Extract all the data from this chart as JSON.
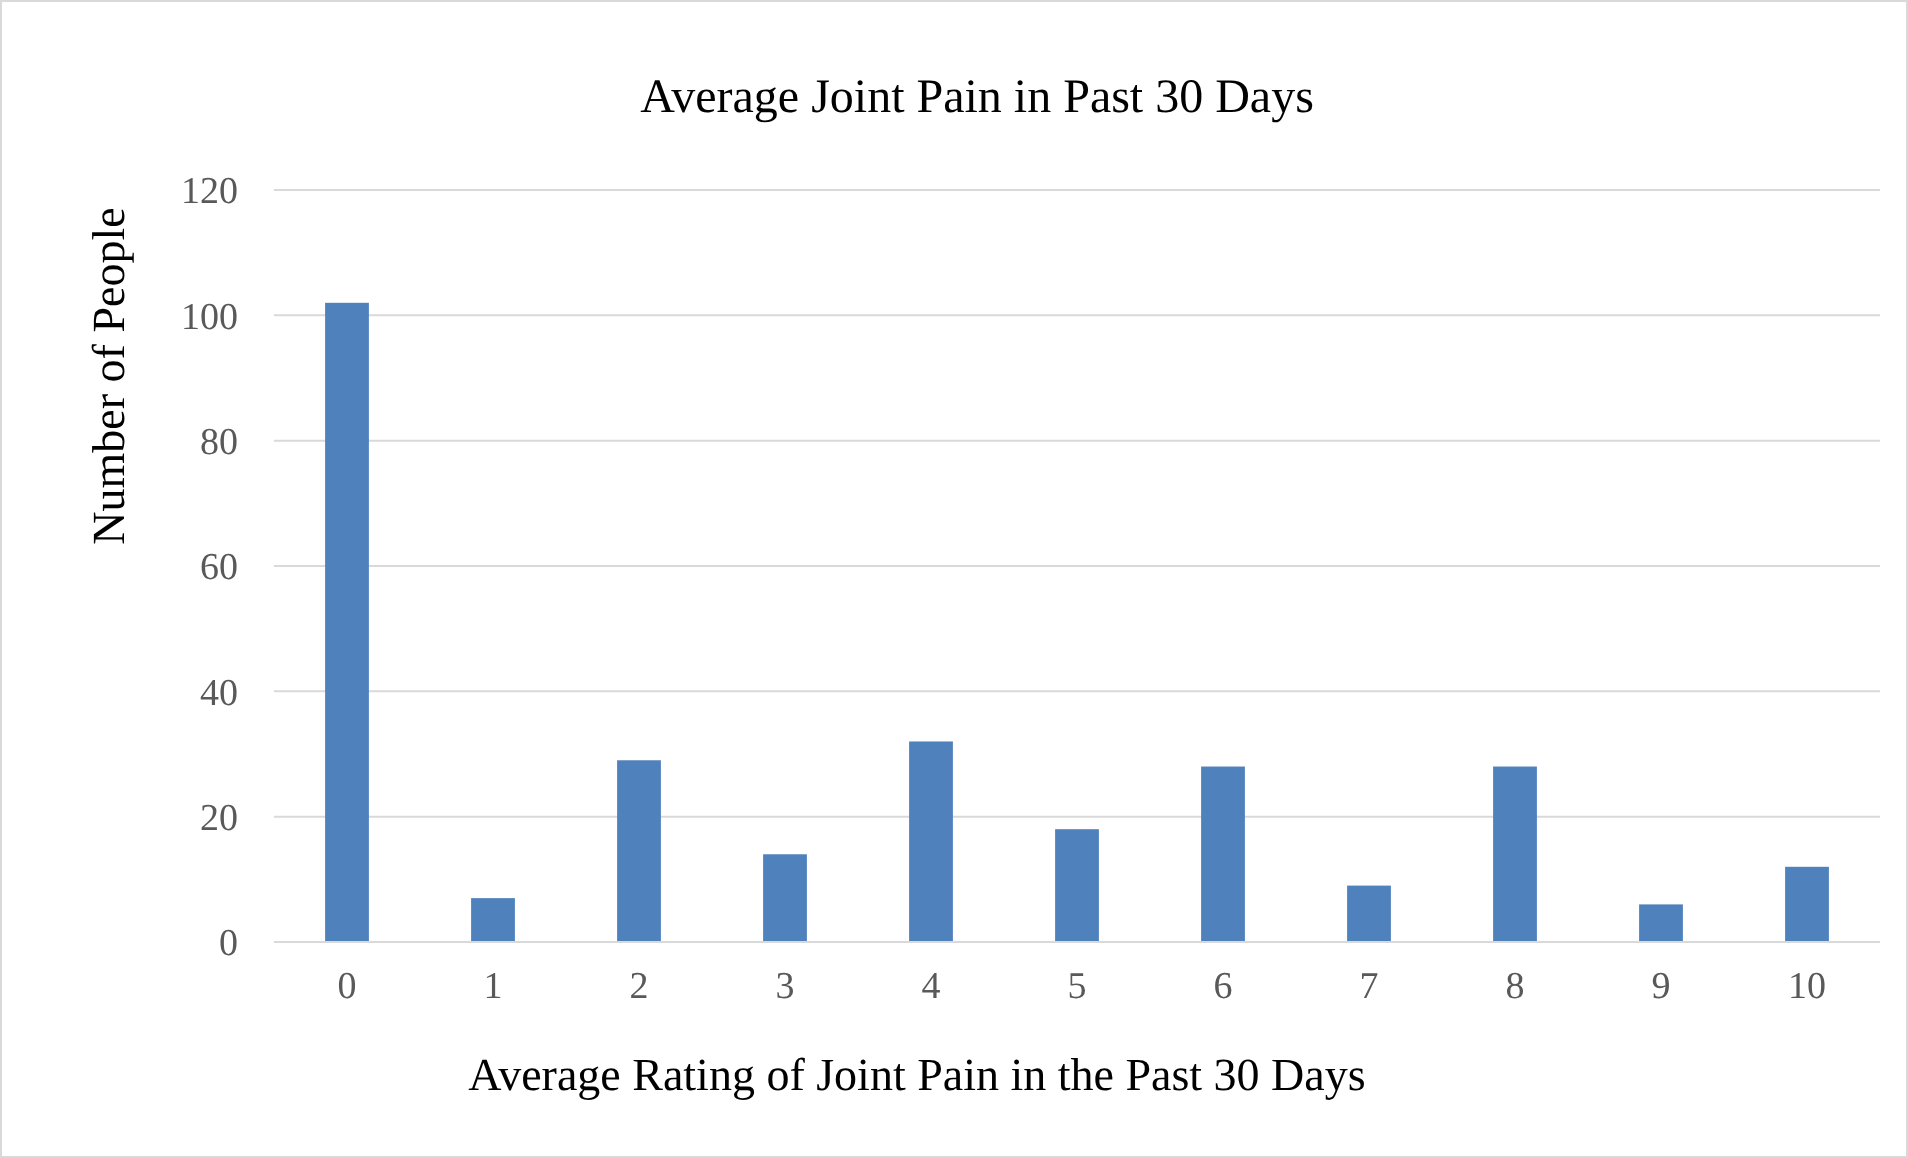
{
  "chart_data": {
    "type": "bar",
    "title": "Average Joint Pain in Past 30 Days",
    "xlabel": "Average Rating of Joint Pain in the Past 30 Days",
    "ylabel": "Number of People",
    "categories": [
      "0",
      "1",
      "2",
      "3",
      "4",
      "5",
      "6",
      "7",
      "8",
      "9",
      "10"
    ],
    "values": [
      102,
      7,
      29,
      14,
      32,
      18,
      28,
      9,
      28,
      6,
      12
    ],
    "color": "#4f81bd",
    "ylim": [
      0,
      120
    ],
    "yticks": [
      0,
      20,
      40,
      60,
      80,
      100,
      120
    ],
    "grid": "y"
  }
}
